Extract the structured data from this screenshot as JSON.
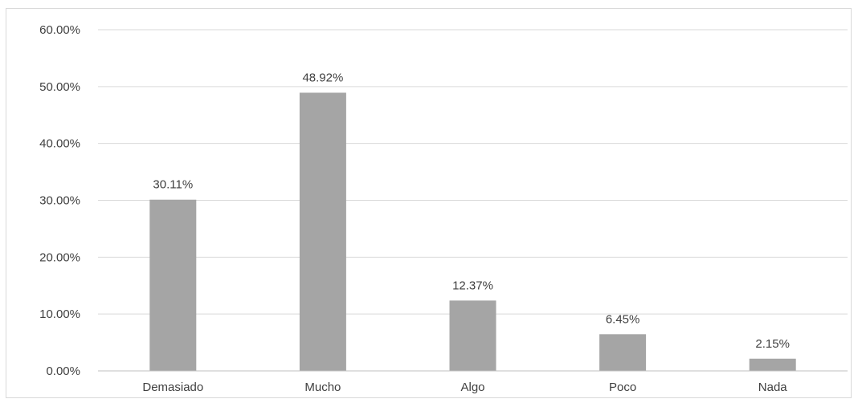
{
  "chart_data": {
    "type": "bar",
    "title": "",
    "xlabel": "",
    "ylabel": "",
    "categories": [
      "Demasiado",
      "Mucho",
      "Algo",
      "Poco",
      "Nada"
    ],
    "values": [
      30.11,
      48.92,
      12.37,
      6.45,
      2.15
    ],
    "data_labels": [
      "30.11%",
      "48.92%",
      "12.37%",
      "6.45%",
      "2.15%"
    ],
    "ylim": [
      0,
      60
    ],
    "yticks": [
      0,
      10,
      20,
      30,
      40,
      50,
      60
    ],
    "ytick_labels": [
      "0.00%",
      "10.00%",
      "20.00%",
      "30.00%",
      "40.00%",
      "50.00%",
      "60.00%"
    ],
    "grid": true,
    "legend": "none",
    "colors": {
      "bar": "#a5a5a5",
      "grid": "#d9d9d9",
      "axis": "#bfbfbf",
      "text": "#404040"
    }
  }
}
